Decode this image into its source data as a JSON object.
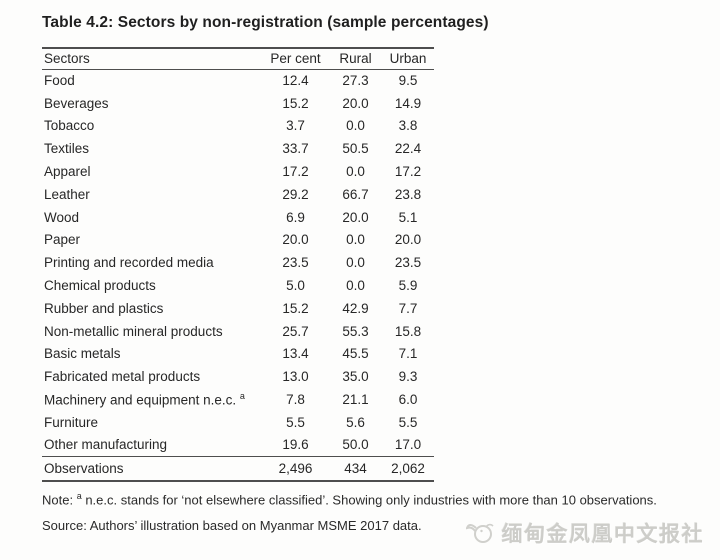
{
  "title": "Table 4.2: Sectors by non-registration (sample percentages)",
  "table": {
    "columns": [
      "Sectors",
      "Per cent",
      "Rural",
      "Urban"
    ],
    "rows": [
      {
        "sector": "Food",
        "values": [
          "12.4",
          "27.3",
          "9.5"
        ]
      },
      {
        "sector": "Beverages",
        "values": [
          "15.2",
          "20.0",
          "14.9"
        ]
      },
      {
        "sector": "Tobacco",
        "values": [
          "3.7",
          "0.0",
          "3.8"
        ]
      },
      {
        "sector": "Textiles",
        "values": [
          "33.7",
          "50.5",
          "22.4"
        ]
      },
      {
        "sector": "Apparel",
        "values": [
          "17.2",
          "0.0",
          "17.2"
        ]
      },
      {
        "sector": "Leather",
        "values": [
          "29.2",
          "66.7",
          "23.8"
        ]
      },
      {
        "sector": "Wood",
        "values": [
          "6.9",
          "20.0",
          "5.1"
        ]
      },
      {
        "sector": "Paper",
        "values": [
          "20.0",
          "0.0",
          "20.0"
        ]
      },
      {
        "sector": "Printing and recorded media",
        "values": [
          "23.5",
          "0.0",
          "23.5"
        ]
      },
      {
        "sector": "Chemical products",
        "values": [
          "5.0",
          "0.0",
          "5.9"
        ]
      },
      {
        "sector": "Rubber and plastics",
        "values": [
          "15.2",
          "42.9",
          "7.7"
        ]
      },
      {
        "sector": "Non-metallic mineral products",
        "values": [
          "25.7",
          "55.3",
          "15.8"
        ]
      },
      {
        "sector": "Basic metals",
        "values": [
          "13.4",
          "45.5",
          "7.1"
        ]
      },
      {
        "sector": "Fabricated metal products",
        "values": [
          "13.0",
          "35.0",
          "9.3"
        ]
      },
      {
        "sector": "Machinery and equipment n.e.c.",
        "superscript": "a",
        "values": [
          "7.8",
          "21.1",
          "6.0"
        ]
      },
      {
        "sector": "Furniture",
        "values": [
          "5.5",
          "5.6",
          "5.5"
        ]
      },
      {
        "sector": "Other manufacturing",
        "values": [
          "19.6",
          "50.0",
          "17.0"
        ]
      }
    ],
    "footer_row": {
      "sector": "Observations",
      "values": [
        "2,496",
        "434",
        "2,062"
      ]
    }
  },
  "note": {
    "prefix": "Note: ",
    "superscript": "a",
    "text": " n.e.c. stands for ‘not elsewhere classified’. Showing only industries with more than 10 observations."
  },
  "source": "Source: Authors’ illustration based on Myanmar MSME 2017 data.",
  "watermark": {
    "text": "缅甸金凤凰中文报社"
  },
  "colors": {
    "text": "#262626",
    "rule": "#4e4e4e",
    "watermark": "#cdcdc9",
    "background": "#fdfdfc"
  },
  "chart_data": {
    "type": "table",
    "title": "Table 4.2: Sectors by non-registration (sample percentages)",
    "columns": [
      "Sectors",
      "Per cent",
      "Rural",
      "Urban"
    ],
    "rows": [
      [
        "Food",
        12.4,
        27.3,
        9.5
      ],
      [
        "Beverages",
        15.2,
        20.0,
        14.9
      ],
      [
        "Tobacco",
        3.7,
        0.0,
        3.8
      ],
      [
        "Textiles",
        33.7,
        50.5,
        22.4
      ],
      [
        "Apparel",
        17.2,
        0.0,
        17.2
      ],
      [
        "Leather",
        29.2,
        66.7,
        23.8
      ],
      [
        "Wood",
        6.9,
        20.0,
        5.1
      ],
      [
        "Paper",
        20.0,
        0.0,
        20.0
      ],
      [
        "Printing and recorded media",
        23.5,
        0.0,
        23.5
      ],
      [
        "Chemical products",
        5.0,
        0.0,
        5.9
      ],
      [
        "Rubber and plastics",
        15.2,
        42.9,
        7.7
      ],
      [
        "Non-metallic mineral products",
        25.7,
        55.3,
        15.8
      ],
      [
        "Basic metals",
        13.4,
        45.5,
        7.1
      ],
      [
        "Fabricated metal products",
        13.0,
        35.0,
        9.3
      ],
      [
        "Machinery and equipment n.e.c.",
        7.8,
        21.1,
        6.0
      ],
      [
        "Furniture",
        5.5,
        5.6,
        5.5
      ],
      [
        "Other manufacturing",
        19.6,
        50.0,
        17.0
      ],
      [
        "Observations",
        2496,
        434,
        2062
      ]
    ]
  }
}
